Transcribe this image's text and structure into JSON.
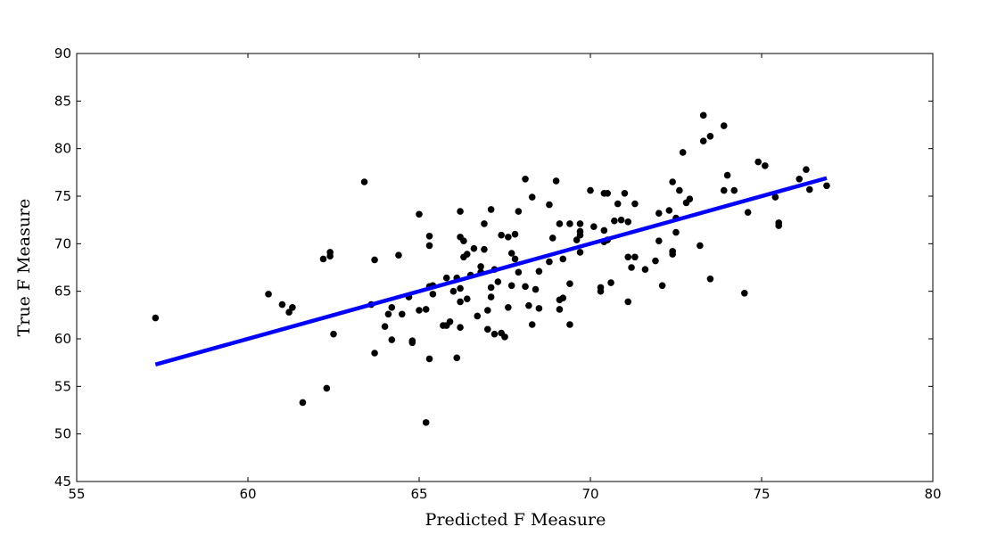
{
  "chart_data": {
    "type": "scatter",
    "title": "",
    "xlabel": "Predicted  F  Measure",
    "ylabel": "True  F  Measure",
    "xlim": [
      55,
      80
    ],
    "ylim": [
      45,
      90
    ],
    "xticks": [
      55,
      60,
      65,
      70,
      75,
      80
    ],
    "yticks": [
      45,
      50,
      55,
      60,
      65,
      70,
      75,
      80,
      85,
      90
    ],
    "grid": false,
    "legend": "none",
    "colors": {
      "points": "#000000",
      "fit_line": "#0000ff"
    },
    "fit_line": {
      "x": [
        57.3,
        76.9
      ],
      "y": [
        57.3,
        76.9
      ]
    },
    "points": [
      [
        57.3,
        62.2
      ],
      [
        60.6,
        64.7
      ],
      [
        61.0,
        63.6
      ],
      [
        61.2,
        62.8
      ],
      [
        61.3,
        63.3
      ],
      [
        61.6,
        53.3
      ],
      [
        62.2,
        68.4
      ],
      [
        62.3,
        54.8
      ],
      [
        62.4,
        69.1
      ],
      [
        62.4,
        68.7
      ],
      [
        62.5,
        60.5
      ],
      [
        63.4,
        76.5
      ],
      [
        63.6,
        63.6
      ],
      [
        63.7,
        58.5
      ],
      [
        63.7,
        68.3
      ],
      [
        64.0,
        61.3
      ],
      [
        64.1,
        62.6
      ],
      [
        64.2,
        63.3
      ],
      [
        64.2,
        59.9
      ],
      [
        64.4,
        68.8
      ],
      [
        64.5,
        62.6
      ],
      [
        64.7,
        64.4
      ],
      [
        64.8,
        59.6
      ],
      [
        64.8,
        59.8
      ],
      [
        65.0,
        73.1
      ],
      [
        65.0,
        63.0
      ],
      [
        65.2,
        63.1
      ],
      [
        65.2,
        51.2
      ],
      [
        65.3,
        65.5
      ],
      [
        65.3,
        70.8
      ],
      [
        65.3,
        69.8
      ],
      [
        65.3,
        57.9
      ],
      [
        65.4,
        65.6
      ],
      [
        65.4,
        64.7
      ],
      [
        65.7,
        61.4
      ],
      [
        65.8,
        66.4
      ],
      [
        65.8,
        61.4
      ],
      [
        65.9,
        61.8
      ],
      [
        66.0,
        65.0
      ],
      [
        66.1,
        66.4
      ],
      [
        66.1,
        58.0
      ],
      [
        66.2,
        73.4
      ],
      [
        66.2,
        70.7
      ],
      [
        66.2,
        65.3
      ],
      [
        66.2,
        63.9
      ],
      [
        66.2,
        61.2
      ],
      [
        66.3,
        68.6
      ],
      [
        66.3,
        70.3
      ],
      [
        66.4,
        68.9
      ],
      [
        66.4,
        64.2
      ],
      [
        66.5,
        66.7
      ],
      [
        66.6,
        69.5
      ],
      [
        66.7,
        62.4
      ],
      [
        66.8,
        67.6
      ],
      [
        66.8,
        67.0
      ],
      [
        66.9,
        72.1
      ],
      [
        66.9,
        69.4
      ],
      [
        67.0,
        63.0
      ],
      [
        67.0,
        61.0
      ],
      [
        67.1,
        73.6
      ],
      [
        67.1,
        65.4
      ],
      [
        67.1,
        64.4
      ],
      [
        67.2,
        67.3
      ],
      [
        67.2,
        60.5
      ],
      [
        67.3,
        66.0
      ],
      [
        67.4,
        70.9
      ],
      [
        67.4,
        60.6
      ],
      [
        67.5,
        60.2
      ],
      [
        67.6,
        70.7
      ],
      [
        67.6,
        63.3
      ],
      [
        67.7,
        69.0
      ],
      [
        67.7,
        65.6
      ],
      [
        67.8,
        68.4
      ],
      [
        67.8,
        71.0
      ],
      [
        67.9,
        73.4
      ],
      [
        67.9,
        67.0
      ],
      [
        68.1,
        76.8
      ],
      [
        68.1,
        65.5
      ],
      [
        68.2,
        63.5
      ],
      [
        68.3,
        74.9
      ],
      [
        68.3,
        61.5
      ],
      [
        68.4,
        65.2
      ],
      [
        68.5,
        63.2
      ],
      [
        68.5,
        67.1
      ],
      [
        68.8,
        74.1
      ],
      [
        68.8,
        68.1
      ],
      [
        68.9,
        70.6
      ],
      [
        69.0,
        76.6
      ],
      [
        69.1,
        72.1
      ],
      [
        69.1,
        64.1
      ],
      [
        69.1,
        63.1
      ],
      [
        69.2,
        68.4
      ],
      [
        69.2,
        64.3
      ],
      [
        69.4,
        72.1
      ],
      [
        69.4,
        61.5
      ],
      [
        69.4,
        65.8
      ],
      [
        69.6,
        70.4
      ],
      [
        69.7,
        72.1
      ],
      [
        69.7,
        71.3
      ],
      [
        69.7,
        70.9
      ],
      [
        69.7,
        69.1
      ],
      [
        70.0,
        75.6
      ],
      [
        70.1,
        71.8
      ],
      [
        70.3,
        65.4
      ],
      [
        70.3,
        65.0
      ],
      [
        70.4,
        75.3
      ],
      [
        70.4,
        71.4
      ],
      [
        70.4,
        70.2
      ],
      [
        70.5,
        75.3
      ],
      [
        70.5,
        70.4
      ],
      [
        70.6,
        65.9
      ],
      [
        70.7,
        72.4
      ],
      [
        70.8,
        74.2
      ],
      [
        70.9,
        72.5
      ],
      [
        71.0,
        75.3
      ],
      [
        71.1,
        72.3
      ],
      [
        71.1,
        68.6
      ],
      [
        71.1,
        63.9
      ],
      [
        71.2,
        67.5
      ],
      [
        71.3,
        74.2
      ],
      [
        71.3,
        68.6
      ],
      [
        71.6,
        67.3
      ],
      [
        71.9,
        68.2
      ],
      [
        72.0,
        73.2
      ],
      [
        72.0,
        70.3
      ],
      [
        72.1,
        65.6
      ],
      [
        72.3,
        73.5
      ],
      [
        72.4,
        76.5
      ],
      [
        72.4,
        69.2
      ],
      [
        72.4,
        68.9
      ],
      [
        72.5,
        72.7
      ],
      [
        72.5,
        71.2
      ],
      [
        72.6,
        75.6
      ],
      [
        72.7,
        79.6
      ],
      [
        72.8,
        74.3
      ],
      [
        72.9,
        74.7
      ],
      [
        73.2,
        69.8
      ],
      [
        73.3,
        83.5
      ],
      [
        73.3,
        80.8
      ],
      [
        73.5,
        81.3
      ],
      [
        73.5,
        66.3
      ],
      [
        73.9,
        82.4
      ],
      [
        73.9,
        75.6
      ],
      [
        74.0,
        77.2
      ],
      [
        74.2,
        75.6
      ],
      [
        74.6,
        73.3
      ],
      [
        74.5,
        64.8
      ],
      [
        74.9,
        78.6
      ],
      [
        75.1,
        78.2
      ],
      [
        75.4,
        74.9
      ],
      [
        75.5,
        72.2
      ],
      [
        75.5,
        71.9
      ],
      [
        76.1,
        76.8
      ],
      [
        76.3,
        77.8
      ],
      [
        76.4,
        75.7
      ],
      [
        76.9,
        76.1
      ]
    ]
  }
}
